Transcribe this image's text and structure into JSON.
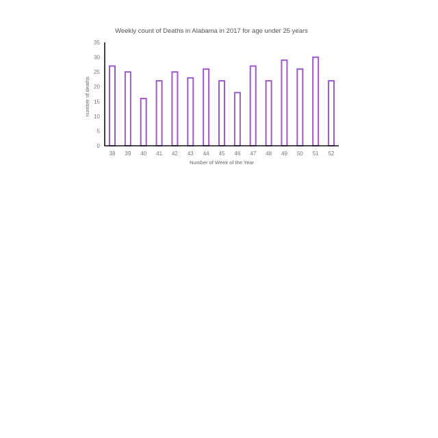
{
  "chart_data": {
    "type": "bar",
    "title": "Weekly count of Deaths in Alabama in 2017 for age under 25 years",
    "xlabel": "Number of Week of the Year",
    "ylabel": "number of deaths",
    "categories": [
      "38",
      "39",
      "40",
      "41",
      "42",
      "43",
      "44",
      "45",
      "46",
      "47",
      "48",
      "49",
      "50",
      "51",
      "52"
    ],
    "values": [
      27,
      25,
      16,
      22,
      25,
      23,
      26,
      22,
      18,
      27,
      22,
      29,
      26,
      30,
      22
    ],
    "ylim": [
      0,
      35
    ],
    "yticks": [
      0,
      5,
      10,
      15,
      20,
      25,
      30,
      35
    ],
    "grid": false,
    "legend": "none",
    "bar_color": "#9b59c9"
  }
}
